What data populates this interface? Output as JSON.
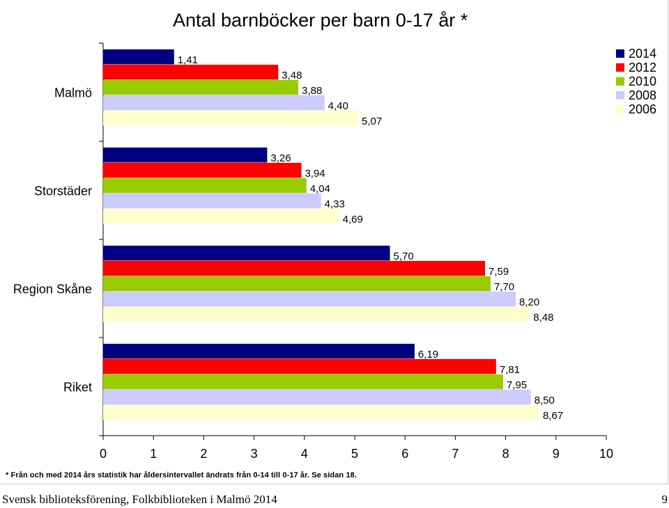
{
  "chart_data": {
    "type": "bar",
    "orientation": "horizontal",
    "title": "Antal barnböcker per barn 0-17 år *",
    "categories": [
      "Malmö",
      "Storstäder",
      "Region Skåne",
      "Riket"
    ],
    "series": [
      {
        "name": "2014",
        "color": "#000080",
        "values": [
          1.41,
          3.26,
          5.7,
          6.19
        ],
        "labels": [
          "1,41",
          "3,26",
          "5,70",
          "6,19"
        ]
      },
      {
        "name": "2012",
        "color": "#ff0000",
        "values": [
          3.48,
          3.94,
          7.59,
          7.81
        ],
        "labels": [
          "3,48",
          "3,94",
          "7,59",
          "7,81"
        ]
      },
      {
        "name": "2010",
        "color": "#99cc00",
        "values": [
          3.88,
          4.04,
          7.7,
          7.95
        ],
        "labels": [
          "3,88",
          "4,04",
          "7,70",
          "7,95"
        ]
      },
      {
        "name": "2008",
        "color": "#ccccff",
        "values": [
          4.4,
          4.33,
          8.2,
          8.5
        ],
        "labels": [
          "4,40",
          "4,33",
          "8,20",
          "8,50"
        ]
      },
      {
        "name": "2006",
        "color": "#ffffcc",
        "values": [
          5.07,
          4.69,
          8.48,
          8.67
        ],
        "labels": [
          "5,07",
          "4,69",
          "8,48",
          "8,67"
        ]
      }
    ],
    "xlim": [
      0,
      10
    ],
    "xticks": [
      "0",
      "1",
      "2",
      "3",
      "4",
      "5",
      "6",
      "7",
      "8",
      "9",
      "10"
    ],
    "grid": false,
    "legend_position": "top-right"
  },
  "footnote": "* Från och med 2014 års statistik har åldersintervallet ändrats från 0-14 till 0-17 år. Se sidan 18.",
  "footer": {
    "text": "Svensk biblioteksförening, Folkbiblioteken i Malmö 2014",
    "page_number": "9"
  }
}
